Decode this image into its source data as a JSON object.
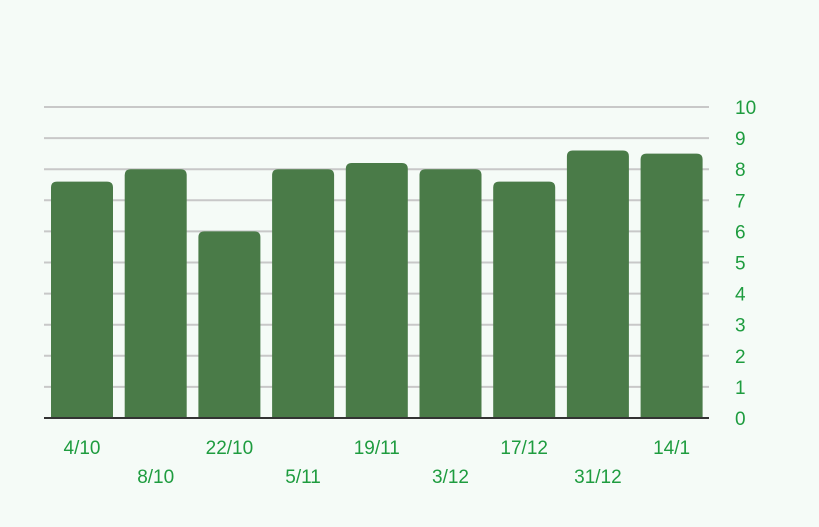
{
  "chart_data": {
    "type": "bar",
    "categories": [
      "4/10",
      "8/10",
      "22/10",
      "5/11",
      "19/11",
      "3/12",
      "17/12",
      "31/12",
      "14/1"
    ],
    "values": [
      7.6,
      8.0,
      6.0,
      8.0,
      8.2,
      8.0,
      7.6,
      8.6,
      8.5
    ],
    "ylim": [
      0,
      10
    ],
    "yticks": [
      0,
      1,
      2,
      3,
      4,
      5,
      6,
      7,
      8,
      9,
      10
    ],
    "y_axis_side": "right",
    "grid": true,
    "title": "",
    "xlabel": "",
    "ylabel": "",
    "colors": {
      "bar": "#4a7b48",
      "tick_text": "#1e9c3f",
      "grid": "#c8c8c8",
      "axis": "#333333",
      "background": "#f5fbf7"
    }
  }
}
